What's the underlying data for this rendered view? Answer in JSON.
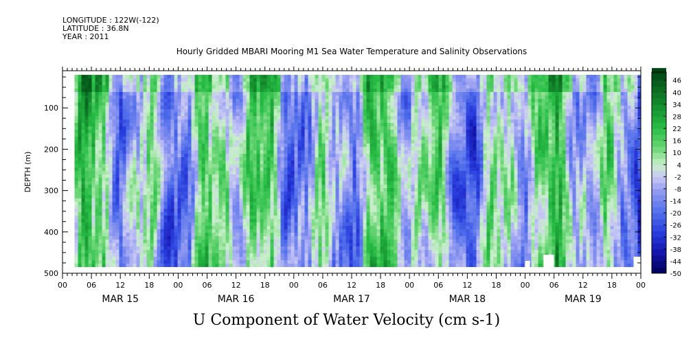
{
  "header": {
    "longitude": "LONGITUDE : 122W(-122)",
    "latitude": "LATITUDE : 36.8N",
    "year": "YEAR : 2011"
  },
  "title": "Hourly Gridded MBARI Mooring M1 Sea Water Temperature and Salinity Observations",
  "footer_title": "U Component of Water Velocity (cm s-1)",
  "colors": {
    "positive_dark": "#004d1a",
    "positive_mid": "#22c040",
    "positive_light": "#c8f0c8",
    "negative_light": "#c8c8f0",
    "negative_mid": "#6a6ae8",
    "negative_dark": "#000060"
  },
  "chart_data": {
    "type": "heatmap",
    "title": "Hourly Gridded MBARI Mooring M1 Sea Water Temperature and Salinity Observations",
    "xlabel": "",
    "ylabel": "DEPTH (m)",
    "colorbar_label": "U Component of Water Velocity (cm s-1)",
    "ylim": [
      500,
      10
    ],
    "y_inverted": true,
    "y_ticks": [
      "100",
      "200",
      "300",
      "400",
      "500"
    ],
    "x_hour_ticks": [
      "00",
      "06",
      "12",
      "18",
      "00",
      "06",
      "12",
      "18",
      "00",
      "06",
      "12",
      "18",
      "00",
      "06",
      "12",
      "18",
      "00",
      "06",
      "12",
      "18",
      "00"
    ],
    "x_day_labels": [
      "MAR 15",
      "MAR 16",
      "MAR 17",
      "MAR 18",
      "MAR 19"
    ],
    "x_range_hours": [
      0,
      120
    ],
    "data_extent_hours": [
      2.5,
      120
    ],
    "data_depth_range": [
      20,
      485
    ],
    "colorbar_levels": [
      -50,
      -44,
      -38,
      -32,
      -26,
      -20,
      -14,
      -8,
      -2,
      4,
      10,
      16,
      22,
      28,
      34,
      40,
      46
    ],
    "value_range": [
      -50,
      50
    ],
    "grid": false
  }
}
